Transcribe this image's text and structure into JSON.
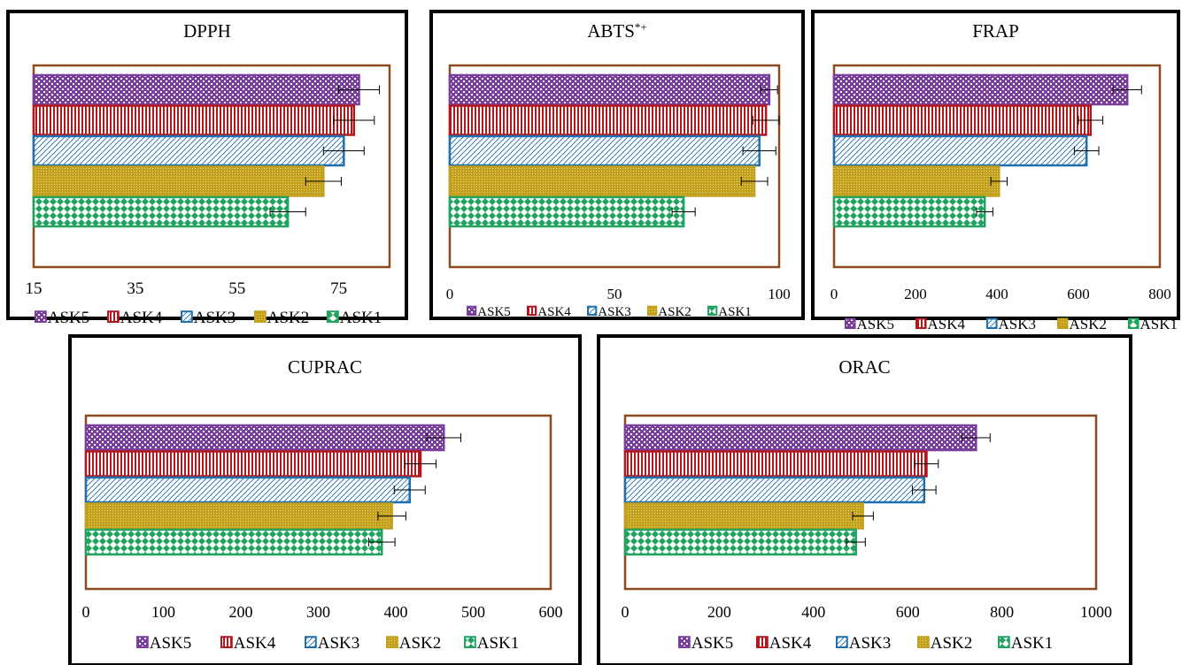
{
  "series_colors": [
    "#7a3f9d",
    "#b3161c",
    "#1f6fad",
    "#c4a11c",
    "#20a35e"
  ],
  "series_patterns": [
    "checker",
    "vlines",
    "diag",
    "dots",
    "diamond"
  ],
  "chart_data": [
    {
      "type": "bar",
      "title": "DPPH",
      "title_sup": "",
      "orientation": "horizontal",
      "xlim": [
        15,
        85
      ],
      "xticks": [
        "15",
        "35",
        "55",
        "75"
      ],
      "xtick_values": [
        15,
        35,
        55,
        75
      ],
      "legend": [
        "ASK5",
        "ASK4",
        "ASK3",
        "ASK2",
        "ASK1"
      ],
      "legend_placement": "bottom",
      "values": [
        79,
        78,
        76,
        72,
        65
      ],
      "errors": [
        4,
        4,
        4,
        3.5,
        3.5
      ]
    },
    {
      "type": "bar",
      "title": "ABTS",
      "title_sup": "*+",
      "orientation": "horizontal",
      "xlim": [
        0,
        100
      ],
      "xticks": [
        "0",
        "50",
        "100"
      ],
      "xtick_values": [
        0,
        50,
        100
      ],
      "legend": [
        "ASK5",
        "ASK4",
        "ASK3",
        "ASK2",
        "ASK1"
      ],
      "legend_placement": "bottom",
      "values": [
        97,
        96,
        94,
        92.5,
        71
      ],
      "errors": [
        2.5,
        4,
        5,
        4,
        3.5
      ]
    },
    {
      "type": "bar",
      "title": "FRAP",
      "title_sup": "",
      "orientation": "horizontal",
      "xlim": [
        0,
        800
      ],
      "xticks": [
        "0",
        "200",
        "400",
        "600",
        "800"
      ],
      "xtick_values": [
        0,
        200,
        400,
        600,
        800
      ],
      "legend": [
        "ASK5",
        "ASK4",
        "ASK3",
        "ASK2",
        "ASK1"
      ],
      "legend_placement": "bottom",
      "values": [
        720,
        630,
        620,
        405,
        370
      ],
      "errors": [
        35,
        30,
        30,
        20,
        20
      ]
    },
    {
      "type": "bar",
      "title": "CUPRAC",
      "title_sup": "",
      "orientation": "horizontal",
      "xlim": [
        0,
        600
      ],
      "xticks": [
        "0",
        "100",
        "200",
        "300",
        "400",
        "500",
        "600"
      ],
      "xtick_values": [
        0,
        100,
        200,
        300,
        400,
        500,
        600
      ],
      "legend": [
        "ASK5",
        "ASK4",
        "ASK3",
        "ASK2",
        "ASK1"
      ],
      "legend_placement": "bottom",
      "values": [
        462,
        432,
        418,
        395,
        382
      ],
      "errors": [
        22,
        20,
        20,
        18,
        17
      ]
    },
    {
      "type": "bar",
      "title": "ORAC",
      "title_sup": "",
      "orientation": "horizontal",
      "xlim": [
        0,
        1000
      ],
      "xticks": [
        "0",
        "200",
        "400",
        "600",
        "800",
        "1000"
      ],
      "xtick_values": [
        0,
        200,
        400,
        600,
        800,
        1000
      ],
      "legend": [
        "ASK5",
        "ASK4",
        "ASK3",
        "ASK2",
        "ASK1"
      ],
      "legend_placement": "bottom",
      "values": [
        745,
        640,
        635,
        505,
        490
      ],
      "errors": [
        30,
        25,
        25,
        22,
        20
      ]
    }
  ]
}
